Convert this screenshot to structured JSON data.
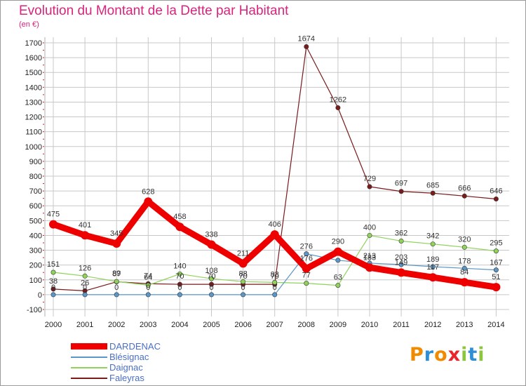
{
  "header": {
    "title": "Evolution du Montant de la Dette par Habitant",
    "subtitle": "(en €)"
  },
  "logo": {
    "text": "Proxiti"
  },
  "colors": {
    "title": "#d8247e",
    "grid": "#c8c8c8",
    "dardenac": "#ee0000",
    "blesignac": "#5a96c8",
    "daignac": "#8fd35a",
    "faleyras": "#7a1a1a",
    "legend_text": "#4a6fc4"
  },
  "chart_data": {
    "type": "line",
    "title": "Evolution du Montant de la Dette par Habitant",
    "subtitle": "(en €)",
    "xlabel": "",
    "ylabel": "",
    "categories": [
      "2000",
      "2001",
      "2002",
      "2003",
      "2004",
      "2005",
      "2006",
      "2007",
      "2008",
      "2009",
      "2010",
      "2011",
      "2012",
      "2013",
      "2014"
    ],
    "ylim": [
      -100,
      1700
    ],
    "yticks": [
      -100,
      0,
      100,
      200,
      300,
      400,
      500,
      600,
      700,
      800,
      900,
      1000,
      1100,
      1200,
      1300,
      1400,
      1500,
      1600,
      1700
    ],
    "grid": true,
    "legend_position": "bottom-left",
    "series": [
      {
        "name": "DARDENAC",
        "values": [
          475,
          401,
          345,
          628,
          458,
          338,
          211,
          406,
          176,
          290,
          183,
          149,
          117,
          84,
          51
        ],
        "labels": [
          "475",
          "401",
          "345",
          "628",
          "458",
          "338",
          "211",
          "406",
          "176",
          "290",
          "183",
          "149",
          "117",
          "84",
          "51"
        ]
      },
      {
        "name": "Blésignac",
        "values": [
          0,
          0,
          0,
          0,
          0,
          0,
          0,
          0,
          276,
          232,
          213,
          203,
          189,
          178,
          167
        ],
        "labels": [
          "0",
          "0",
          "0",
          "0",
          "0",
          "0",
          "0",
          "0",
          "276",
          "",
          "213",
          "203",
          "189",
          "178",
          "167"
        ]
      },
      {
        "name": "Daignac",
        "values": [
          151,
          126,
          89,
          64,
          140,
          108,
          88,
          83,
          77,
          63,
          400,
          362,
          342,
          320,
          295
        ],
        "labels": [
          "151",
          "126",
          "89",
          "64",
          "140",
          "108",
          "88",
          "83",
          "77",
          "63",
          "400",
          "362",
          "342",
          "320",
          "295"
        ]
      },
      {
        "name": "Faleyras",
        "values": [
          38,
          26,
          87,
          74,
          70,
          70,
          70,
          70,
          1674,
          1262,
          729,
          697,
          685,
          666,
          646
        ],
        "labels": [
          "38",
          "26",
          "87",
          "74",
          "70",
          "70",
          "70",
          "70",
          "1674",
          "1262",
          "729",
          "697",
          "685",
          "666",
          "646"
        ]
      }
    ]
  }
}
